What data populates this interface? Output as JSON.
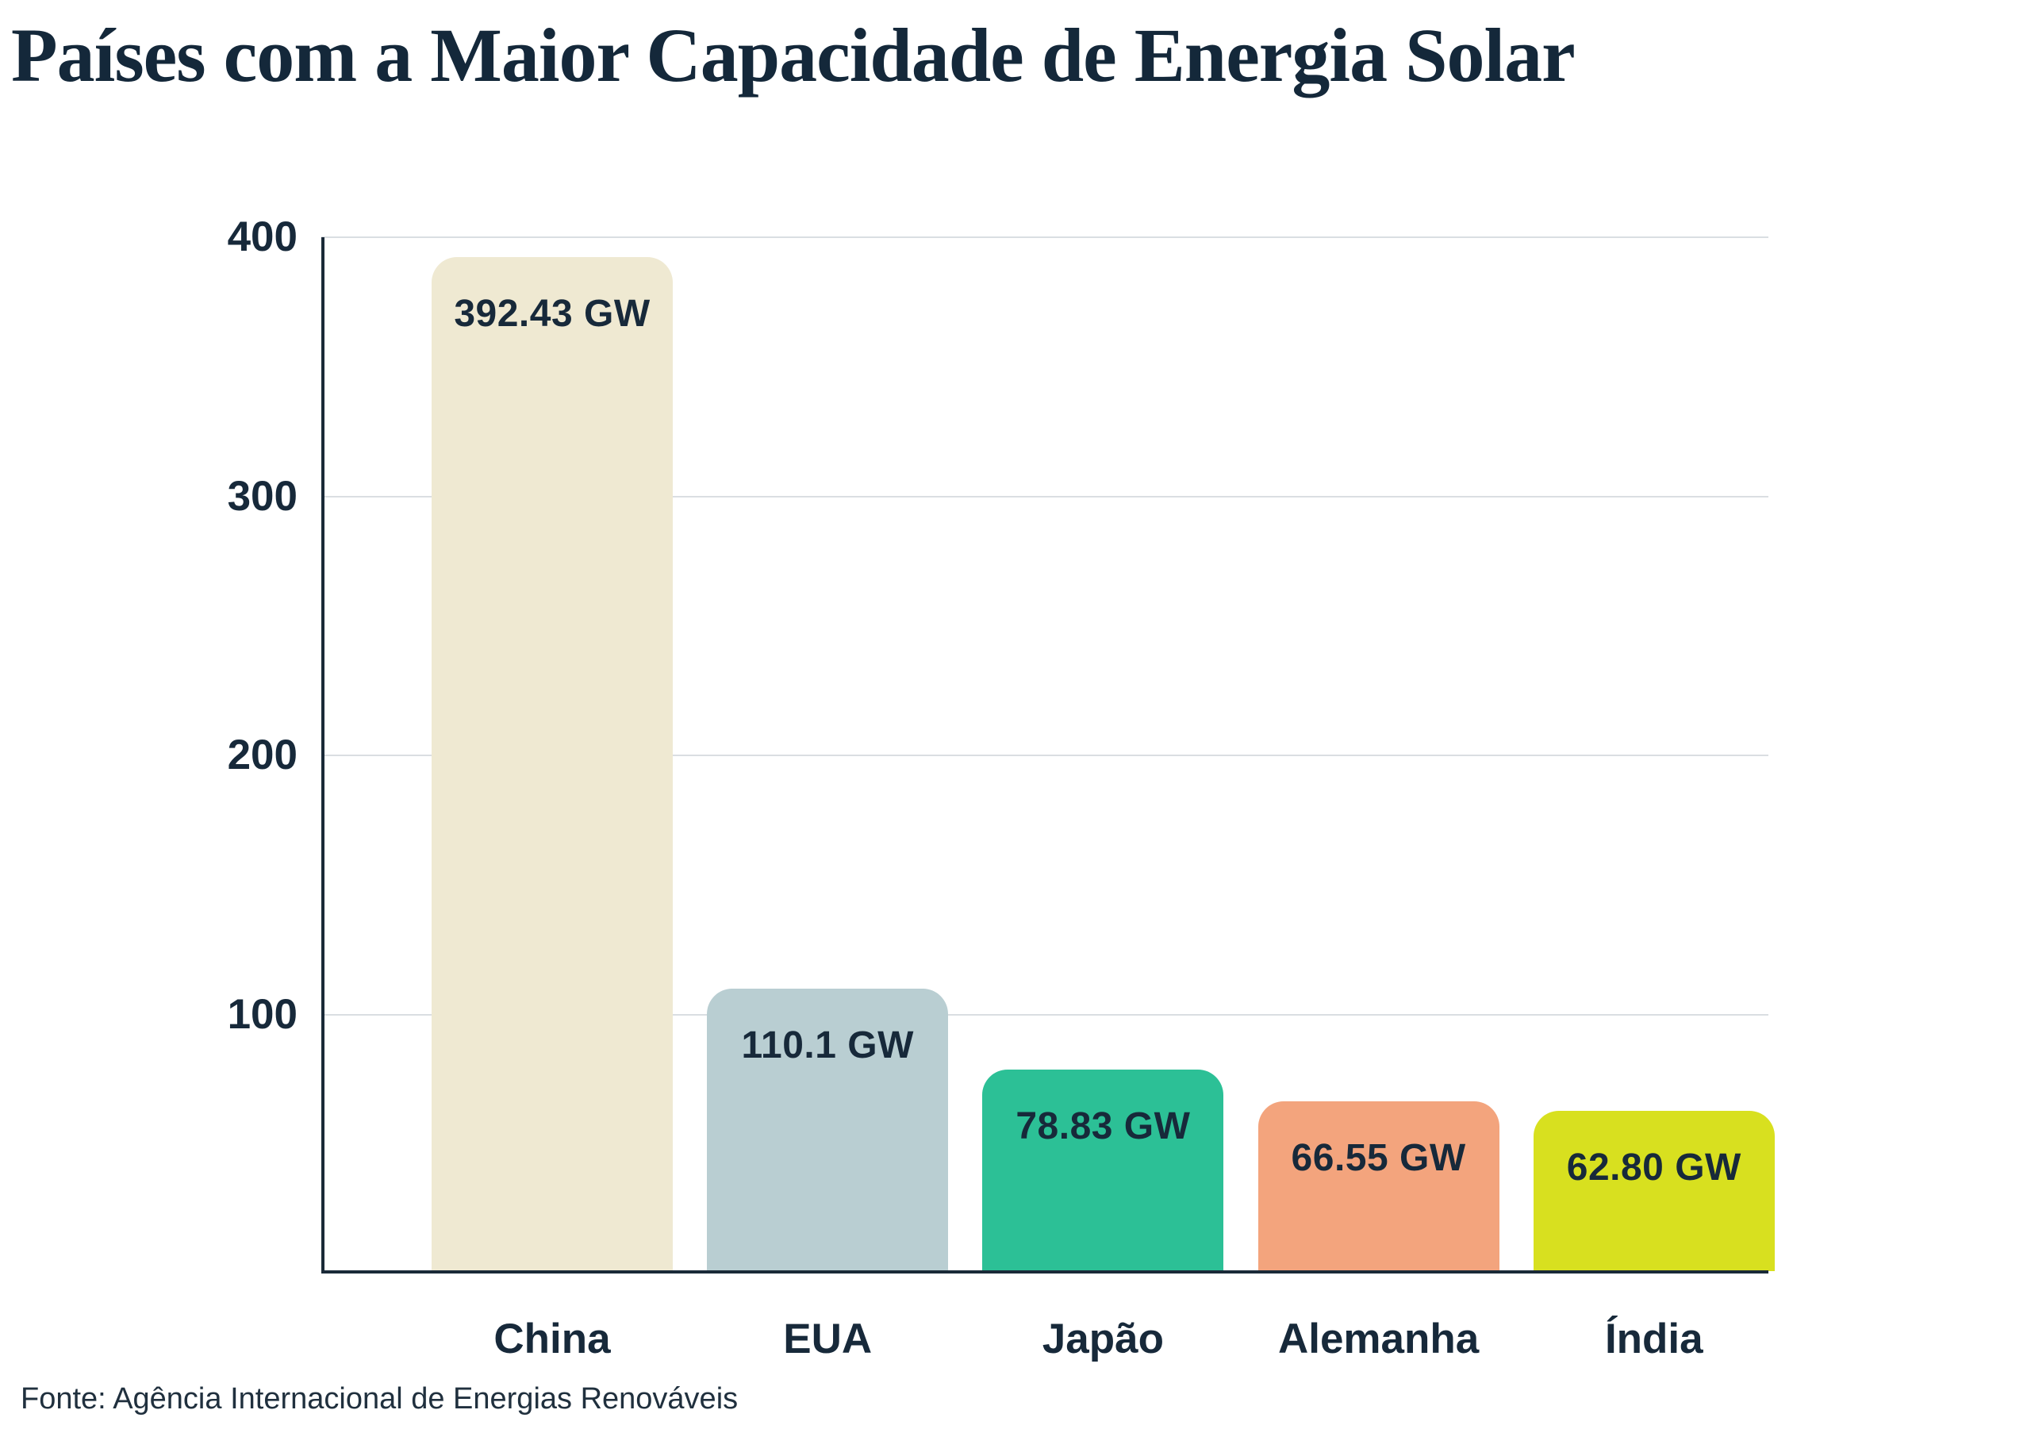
{
  "chart_data": {
    "type": "bar",
    "title": "Países com a Maior Capacidade de Energia Solar",
    "categories": [
      "China",
      "EUA",
      "Japão",
      "Alemanha",
      "Índia"
    ],
    "values": [
      392.43,
      110.1,
      78.83,
      66.55,
      62.8
    ],
    "value_labels": [
      "392.43 GW",
      "110.1 GW",
      "78.83 GW",
      "66.55 GW",
      "62.80 GW"
    ],
    "bar_colors": [
      "#efe9d2",
      "#b9ced2",
      "#2cc096",
      "#f3a47d",
      "#d8e01f"
    ],
    "unit": "GW",
    "ylim": [
      0,
      400
    ],
    "yticks": [
      100,
      200,
      300,
      400
    ],
    "grid": true,
    "legend": "none",
    "xlabel": "",
    "ylabel": "",
    "source": "Fonte: Agência Internacional de Energias Renováveis",
    "colors": {
      "text": "#17293a",
      "axis": "#1a2a38",
      "gridline": "#dadee2",
      "background": "#ffffff"
    }
  }
}
